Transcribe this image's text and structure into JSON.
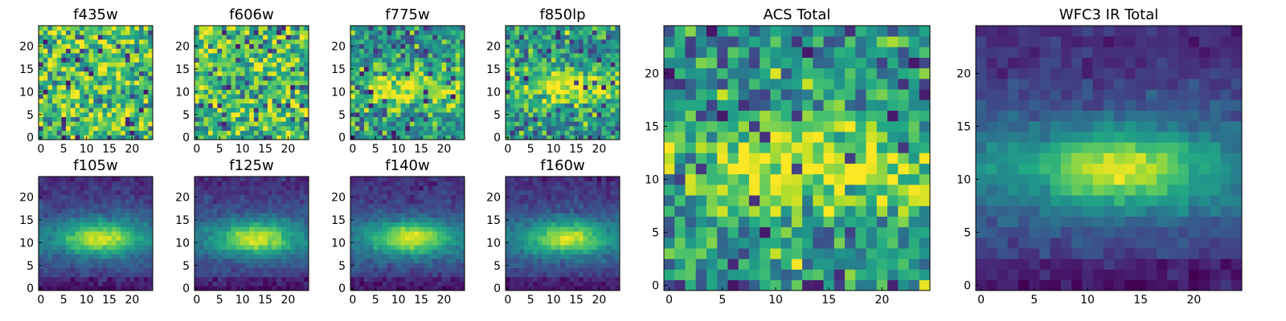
{
  "figure": {
    "panels": [
      {
        "id": "f435w",
        "title": "f435w",
        "pattern": "noise",
        "seed": 11
      },
      {
        "id": "f606w",
        "title": "f606w",
        "pattern": "noise",
        "seed": 23
      },
      {
        "id": "f775w",
        "title": "f775w",
        "pattern": "faint-band",
        "seed": 37
      },
      {
        "id": "f850lp",
        "title": "f850lp",
        "pattern": "faint-band",
        "seed": 41
      },
      {
        "id": "f105w",
        "title": "f105w",
        "pattern": "galaxy",
        "seed": 53
      },
      {
        "id": "f125w",
        "title": "f125w",
        "pattern": "galaxy",
        "seed": 67
      },
      {
        "id": "f140w",
        "title": "f140w",
        "pattern": "galaxy",
        "seed": 71
      },
      {
        "id": "f160w",
        "title": "f160w",
        "pattern": "galaxy",
        "seed": 89
      },
      {
        "id": "acs-total",
        "title": "ACS Total",
        "pattern": "faint-band",
        "seed": 97
      },
      {
        "id": "wfc3-ir-total",
        "title": "WFC3 IR Total",
        "pattern": "galaxy",
        "seed": 101
      }
    ]
  },
  "chart_data": {
    "type": "heatmap",
    "colormap": "viridis",
    "grid_size": [
      25,
      25
    ],
    "galaxy_center": {
      "x": 13,
      "y": 11
    },
    "panels": [
      {
        "title": "f435w",
        "xlim": [
          0,
          25
        ],
        "ylim": [
          0,
          25
        ],
        "xticks": [
          0,
          5,
          10,
          15,
          20
        ],
        "yticks": [
          0,
          5,
          10,
          15,
          20
        ],
        "content": "pixel noise, no clear source"
      },
      {
        "title": "f606w",
        "xlim": [
          0,
          25
        ],
        "ylim": [
          0,
          25
        ],
        "xticks": [
          0,
          5,
          10,
          15,
          20
        ],
        "yticks": [
          0,
          5,
          10,
          15,
          20
        ],
        "content": "pixel noise, no clear source"
      },
      {
        "title": "f775w",
        "xlim": [
          0,
          25
        ],
        "ylim": [
          0,
          25
        ],
        "xticks": [
          0,
          5,
          10,
          15,
          20
        ],
        "yticks": [
          0,
          5,
          10,
          15,
          20
        ],
        "content": "faint horizontal band near y=11"
      },
      {
        "title": "f850lp",
        "xlim": [
          0,
          25
        ],
        "ylim": [
          0,
          25
        ],
        "xticks": [
          0,
          5,
          10,
          15,
          20
        ],
        "yticks": [
          0,
          5,
          10,
          15,
          20
        ],
        "content": "faint horizontal band near y=11"
      },
      {
        "title": "f105w",
        "xlim": [
          0,
          25
        ],
        "ylim": [
          0,
          25
        ],
        "xticks": [
          0,
          5,
          10,
          15,
          20
        ],
        "yticks": [
          0,
          5,
          10,
          15,
          20
        ],
        "content": "elongated source centered ~(13,11)"
      },
      {
        "title": "f125w",
        "xlim": [
          0,
          25
        ],
        "ylim": [
          0,
          25
        ],
        "xticks": [
          0,
          5,
          10,
          15,
          20
        ],
        "yticks": [
          0,
          5,
          10,
          15,
          20
        ],
        "content": "elongated source centered ~(13,11)"
      },
      {
        "title": "f140w",
        "xlim": [
          0,
          25
        ],
        "ylim": [
          0,
          25
        ],
        "xticks": [
          0,
          5,
          10,
          15,
          20
        ],
        "yticks": [
          0,
          5,
          10,
          15,
          20
        ],
        "content": "elongated source centered ~(13,11)"
      },
      {
        "title": "f160w",
        "xlim": [
          0,
          25
        ],
        "ylim": [
          0,
          25
        ],
        "xticks": [
          0,
          5,
          10,
          15,
          20
        ],
        "yticks": [
          0,
          5,
          10,
          15,
          20
        ],
        "content": "elongated source centered ~(13,11)"
      },
      {
        "title": "ACS Total",
        "xlim": [
          0,
          25
        ],
        "ylim": [
          0,
          25
        ],
        "xticks": [
          0,
          5,
          10,
          15,
          20
        ],
        "yticks": [
          0,
          5,
          10,
          15,
          20
        ],
        "content": "noisy with brighter region near (12,11)"
      },
      {
        "title": "WFC3 IR Total",
        "xlim": [
          0,
          25
        ],
        "ylim": [
          0,
          25
        ],
        "xticks": [
          0,
          5,
          10,
          15,
          20
        ],
        "yticks": [
          0,
          5,
          10,
          15,
          20
        ],
        "content": "smooth elongated source centered ~(13,11)"
      }
    ]
  }
}
